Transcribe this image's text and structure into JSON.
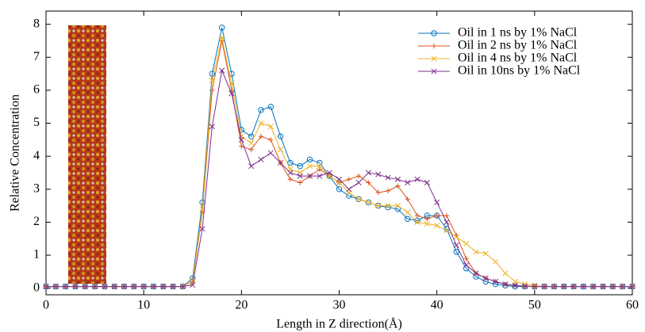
{
  "chart_data": {
    "type": "line",
    "x_label": "Length in Z direction(Å)",
    "y_label": "Relative Concentration",
    "x": [
      0,
      1,
      2,
      3,
      4,
      5,
      6,
      7,
      8,
      9,
      10,
      11,
      12,
      13,
      14,
      15,
      16,
      17,
      18,
      19,
      20,
      21,
      22,
      23,
      24,
      25,
      26,
      27,
      28,
      29,
      30,
      31,
      32,
      33,
      34,
      35,
      36,
      37,
      38,
      39,
      40,
      41,
      42,
      43,
      44,
      45,
      46,
      47,
      48,
      49,
      50,
      51,
      52,
      53,
      54,
      55,
      56,
      57,
      58,
      59,
      60
    ],
    "series": [
      {
        "name": "Oil in 1 ns by 1% NaCl",
        "color": "#0072bd",
        "marker": "circle",
        "values": [
          0.05,
          0.05,
          0.05,
          0.05,
          0.05,
          0.05,
          0.05,
          0.05,
          0.05,
          0.05,
          0.05,
          0.05,
          0.05,
          0.05,
          0.05,
          0.3,
          2.6,
          6.5,
          7.9,
          6.5,
          4.8,
          4.6,
          5.4,
          5.5,
          4.6,
          3.8,
          3.7,
          3.9,
          3.8,
          3.4,
          3.0,
          2.8,
          2.7,
          2.6,
          2.5,
          2.45,
          2.4,
          2.1,
          2.05,
          2.2,
          2.2,
          1.8,
          1.1,
          0.6,
          0.35,
          0.2,
          0.12,
          0.08,
          0.05,
          0.05,
          0.05,
          0.05,
          0.05,
          0.05,
          0.05,
          0.05,
          0.05,
          0.05,
          0.05,
          0.05,
          0.05
        ]
      },
      {
        "name": "Oil in 2 ns by 1% NaCl",
        "color": "#d95319",
        "marker": "plus",
        "values": [
          0.05,
          0.05,
          0.05,
          0.05,
          0.05,
          0.05,
          0.05,
          0.05,
          0.05,
          0.05,
          0.05,
          0.05,
          0.05,
          0.05,
          0.05,
          0.2,
          2.3,
          6.0,
          7.5,
          6.0,
          4.3,
          4.2,
          4.6,
          4.5,
          3.8,
          3.3,
          3.2,
          3.4,
          3.6,
          3.4,
          3.2,
          3.3,
          3.4,
          3.2,
          2.9,
          2.95,
          3.1,
          2.7,
          2.2,
          2.1,
          2.2,
          2.2,
          1.6,
          0.9,
          0.45,
          0.3,
          0.2,
          0.12,
          0.08,
          0.06,
          0.05,
          0.05,
          0.05,
          0.05,
          0.05,
          0.05,
          0.05,
          0.05,
          0.05,
          0.05,
          0.05
        ]
      },
      {
        "name": "Oil in 4 ns by 1% NaCl",
        "color": "#edb120",
        "marker": "x",
        "values": [
          0.05,
          0.05,
          0.05,
          0.05,
          0.05,
          0.05,
          0.05,
          0.05,
          0.05,
          0.05,
          0.05,
          0.05,
          0.05,
          0.05,
          0.05,
          0.2,
          2.4,
          6.3,
          7.6,
          6.2,
          4.6,
          4.4,
          5.0,
          4.9,
          4.2,
          3.6,
          3.5,
          3.7,
          3.7,
          3.4,
          3.2,
          2.9,
          2.7,
          2.6,
          2.5,
          2.5,
          2.5,
          2.3,
          2.0,
          1.95,
          1.9,
          1.75,
          1.55,
          1.35,
          1.1,
          1.05,
          0.8,
          0.45,
          0.2,
          0.12,
          0.08,
          0.05,
          0.05,
          0.05,
          0.05,
          0.05,
          0.05,
          0.05,
          0.05,
          0.05,
          0.05
        ]
      },
      {
        "name": "Oil in 10ns by 1% NaCl",
        "color": "#7e2f8e",
        "marker": "x",
        "values": [
          0.05,
          0.05,
          0.05,
          0.05,
          0.05,
          0.05,
          0.05,
          0.05,
          0.05,
          0.05,
          0.05,
          0.05,
          0.05,
          0.05,
          0.05,
          0.1,
          1.8,
          4.9,
          6.6,
          5.9,
          4.5,
          3.7,
          3.9,
          4.1,
          3.8,
          3.5,
          3.4,
          3.4,
          3.4,
          3.5,
          3.3,
          3.0,
          3.2,
          3.5,
          3.45,
          3.35,
          3.3,
          3.2,
          3.3,
          3.2,
          2.6,
          2.0,
          1.3,
          0.7,
          0.45,
          0.3,
          0.2,
          0.12,
          0.08,
          0.06,
          0.05,
          0.05,
          0.05,
          0.05,
          0.05,
          0.05,
          0.05,
          0.05,
          0.05,
          0.05,
          0.05
        ]
      }
    ],
    "xlim": [
      0,
      60
    ],
    "xticks": [
      0,
      10,
      20,
      30,
      40,
      50,
      60
    ],
    "ylim": [
      -0.2,
      8.4
    ],
    "yticks": [
      0,
      1,
      2,
      3,
      4,
      5,
      6,
      7,
      8
    ],
    "grid": false,
    "legend": "upper right"
  }
}
